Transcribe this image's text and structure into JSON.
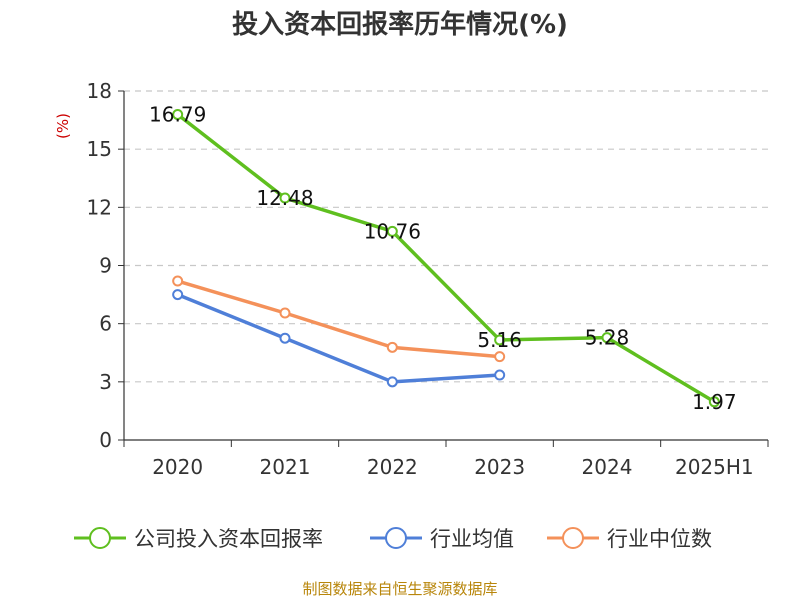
{
  "chart_data": {
    "type": "line",
    "title": "投入资本回报率历年情况(%)",
    "ylabel": "(%)",
    "categories": [
      "2020",
      "2021",
      "2022",
      "2023",
      "2024",
      "2025H1"
    ],
    "yticks": [
      "0",
      "3",
      "6",
      "9",
      "12",
      "15",
      "18"
    ],
    "ylim": [
      0,
      18
    ],
    "grid": true,
    "legend_position": "bottom",
    "series": [
      {
        "name": "公司投入资本回报率",
        "color": "#5fbf1f",
        "values": [
          16.79,
          12.48,
          10.76,
          5.16,
          5.28,
          1.97
        ],
        "labels": [
          "16.79",
          "12.48",
          "10.76",
          "5.16",
          "5.28",
          "1.97"
        ]
      },
      {
        "name": "行业均值",
        "color": "#4f7fd8",
        "values": [
          7.5,
          5.25,
          3.0,
          3.35,
          null,
          null
        ]
      },
      {
        "name": "行业中位数",
        "color": "#f4915a",
        "values": [
          8.2,
          6.55,
          4.78,
          4.3,
          null,
          null
        ]
      }
    ],
    "source": "制图数据来自恒生聚源数据库"
  }
}
